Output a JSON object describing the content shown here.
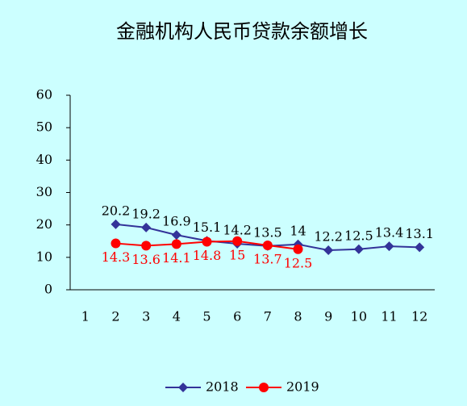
{
  "chart_data": {
    "type": "line",
    "title": "金融机构人民币贷款余额增长",
    "categories": [
      "1",
      "2",
      "3",
      "4",
      "5",
      "6",
      "7",
      "8",
      "9",
      "10",
      "11",
      "12"
    ],
    "series": [
      {
        "name": "2018",
        "color": "#333399",
        "marker": "diamond",
        "label_color": "#000000",
        "values": [
          null,
          20.2,
          19.2,
          16.9,
          15.1,
          14.2,
          13.5,
          14,
          12.2,
          12.5,
          13.4,
          13.1
        ]
      },
      {
        "name": "2019",
        "color": "#ff0000",
        "marker": "circle",
        "label_color": "#ff0000",
        "values": [
          null,
          14.3,
          13.6,
          14.1,
          14.8,
          15,
          13.7,
          12.5,
          null,
          null,
          null,
          null
        ]
      }
    ],
    "ylim": [
      0,
      60
    ],
    "yticks": [
      0,
      10,
      20,
      30,
      40,
      50,
      60
    ],
    "grid": false,
    "legend": "bottom"
  }
}
